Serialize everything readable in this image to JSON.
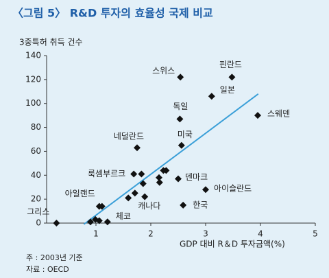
{
  "chart_data": {
    "type": "scatter",
    "title": "〈그림 5〉 R&D 투자의 효율성 국제 비교",
    "y_label": "3중특허 취득 건수",
    "x_label": "GDP 대비 R＆D 투자금액(%)",
    "notes": [
      "주 : 2003년 기준",
      "자료 : OECD"
    ],
    "xlim": [
      0.1,
      5
    ],
    "xticks": [
      1,
      2,
      3,
      4,
      5
    ],
    "ylim": [
      0,
      140
    ],
    "yticks": [
      0,
      20,
      40,
      60,
      80,
      100,
      120,
      140
    ],
    "color": "#111111",
    "trend_color": "#3a9fd8",
    "x": [
      0.28,
      0.9,
      0.99,
      1.06,
      1.21,
      1.06,
      1.11,
      1.59,
      1.71,
      1.86,
      1.89,
      1.69,
      1.83,
      1.75,
      2.15,
      2.16,
      2.23,
      2.28,
      2.5,
      2.56,
      2.53,
      2.54,
      2.59,
      3.0,
      3.11,
      3.48,
      3.95
    ],
    "values": [
      0,
      1,
      3,
      2,
      1,
      14,
      14,
      21,
      25,
      33,
      22,
      41,
      41,
      63,
      38,
      34,
      44,
      44,
      37,
      65,
      87,
      122,
      15,
      28,
      106,
      122,
      90
    ],
    "point_labels": [
      "그리스",
      null,
      null,
      null,
      "체코",
      "아일랜드",
      null,
      null,
      null,
      null,
      "캐나다",
      "룩셈부르크",
      null,
      "네덜란드",
      null,
      null,
      null,
      null,
      "덴마크",
      "미국",
      "독일",
      "스위스",
      "한국",
      "아이슬란드",
      "일본",
      "핀란드",
      "스웨덴"
    ],
    "trend": {
      "x": [
        0.78,
        3.96
      ],
      "y": [
        -1,
        108
      ]
    }
  }
}
